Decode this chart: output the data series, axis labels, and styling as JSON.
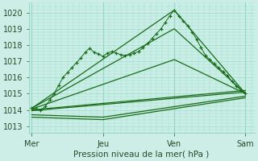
{
  "bg_color": "#cceee6",
  "grid_color": "#99ddcc",
  "line_color": "#1a6b1a",
  "xlabel": "Pression niveau de la mer( hPa )",
  "xticklabels": [
    "Mer",
    "Jeu",
    "Ven",
    "Sam"
  ],
  "xtick_positions": [
    0,
    48,
    96,
    144
  ],
  "ylim": [
    1012.6,
    1020.6
  ],
  "yticks": [
    1013,
    1014,
    1015,
    1016,
    1017,
    1018,
    1019,
    1020
  ],
  "xlim": [
    -2,
    150
  ],
  "day_lines": [
    0,
    48,
    96,
    144
  ],
  "dotted_series": {
    "x": [
      0,
      3,
      6,
      9,
      12,
      15,
      18,
      21,
      24,
      27,
      30,
      33,
      36,
      39,
      42,
      45,
      48,
      51,
      54,
      57,
      60,
      63,
      66,
      69,
      72,
      75,
      78,
      81,
      84,
      87,
      90,
      93,
      96,
      99,
      102,
      105,
      108,
      111,
      114,
      117,
      120,
      123,
      126,
      129,
      132,
      135,
      138,
      141,
      144
    ],
    "y": [
      1014.1,
      1014.05,
      1014.0,
      1014.2,
      1014.6,
      1015.0,
      1015.5,
      1016.0,
      1016.3,
      1016.6,
      1016.9,
      1017.2,
      1017.55,
      1017.8,
      1017.55,
      1017.45,
      1017.3,
      1017.5,
      1017.6,
      1017.5,
      1017.4,
      1017.35,
      1017.4,
      1017.5,
      1017.6,
      1017.85,
      1018.1,
      1018.4,
      1018.7,
      1019.0,
      1019.4,
      1019.8,
      1020.15,
      1019.8,
      1019.5,
      1019.2,
      1018.8,
      1018.35,
      1017.85,
      1017.35,
      1017.1,
      1016.85,
      1016.6,
      1016.35,
      1016.1,
      1015.75,
      1015.45,
      1015.2,
      1015.0
    ]
  },
  "smooth_lines": [
    [
      [
        0,
        1014.1
      ],
      [
        96,
        1020.15
      ],
      [
        144,
        1015.0
      ]
    ],
    [
      [
        0,
        1014.1
      ],
      [
        96,
        1019.0
      ],
      [
        144,
        1015.0
      ]
    ],
    [
      [
        0,
        1014.05
      ],
      [
        96,
        1017.1
      ],
      [
        144,
        1015.0
      ]
    ],
    [
      [
        0,
        1014.0
      ],
      [
        144,
        1015.2
      ]
    ],
    [
      [
        0,
        1013.95
      ],
      [
        144,
        1015.1
      ]
    ],
    [
      [
        0,
        1013.7
      ],
      [
        48,
        1013.55
      ],
      [
        144,
        1014.85
      ]
    ],
    [
      [
        0,
        1013.55
      ],
      [
        48,
        1013.4
      ],
      [
        144,
        1014.75
      ]
    ]
  ]
}
